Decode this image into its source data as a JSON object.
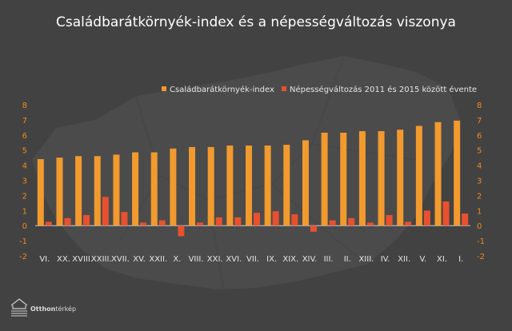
{
  "colors": {
    "background": "#424242",
    "map": "#4e4e4e",
    "series1": "#f29a2e",
    "series2": "#e8512f",
    "axis_ticks": "#f08a1d",
    "text": "#e6e6e6"
  },
  "logo": {
    "brand_bold": "Otthon",
    "brand_light": "térkép",
    "icon": "house-stack-icon"
  },
  "chart_data": {
    "type": "bar",
    "title": "Családbarátkörnyék-index és a népességváltozás viszonya",
    "xlabel": "",
    "ylabel": "",
    "ylim": [
      -2,
      8
    ],
    "yticks": [
      8,
      7,
      6,
      5,
      4,
      3,
      2,
      1,
      0,
      -1,
      -2
    ],
    "grid": false,
    "legend_position": "top-right",
    "categories": [
      "VI.",
      "XX.",
      "XVIII.",
      "XXIII.",
      "XVII.",
      "XV.",
      "XXII.",
      "X.",
      "VIII.",
      "XXI.",
      "XVI.",
      "VII.",
      "IX.",
      "XIX.",
      "XIV.",
      "III.",
      "II.",
      "XIII.",
      "IV.",
      "XII.",
      "V.",
      "XI.",
      "I."
    ],
    "series": [
      {
        "name": "Családbarátkörnyék-index",
        "values": [
          4.4,
          4.5,
          4.6,
          4.6,
          4.7,
          4.85,
          4.85,
          5.1,
          5.2,
          5.2,
          5.3,
          5.3,
          5.3,
          5.35,
          5.65,
          6.15,
          6.15,
          6.25,
          6.25,
          6.35,
          6.6,
          6.85,
          6.95
        ]
      },
      {
        "name": "Népességváltozás 2011 és 2015 között évente",
        "values": [
          0.25,
          0.5,
          0.7,
          1.9,
          0.9,
          0.2,
          0.35,
          -0.7,
          0.2,
          0.55,
          0.55,
          0.85,
          0.95,
          0.75,
          -0.4,
          0.35,
          0.5,
          0.2,
          0.7,
          0.25,
          1.0,
          1.6,
          0.8
        ]
      }
    ]
  }
}
